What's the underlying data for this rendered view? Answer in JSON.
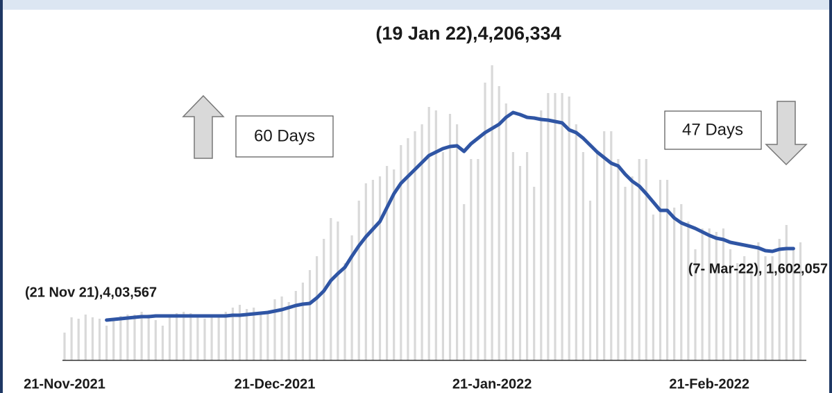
{
  "chart_data": {
    "type": "bar-line",
    "annotations": [
      "(19 Jan 22),4,206,334",
      "(21 Nov 21),4,03,567",
      "(7- Mar-22), 1,602,057",
      "60 Days",
      "47 Days"
    ],
    "categories": [
      "21-Nov-2021",
      null,
      null,
      null,
      null,
      null,
      null,
      null,
      null,
      null,
      null,
      null,
      null,
      null,
      null,
      null,
      null,
      null,
      null,
      null,
      null,
      null,
      null,
      null,
      null,
      null,
      null,
      null,
      null,
      null,
      "21-Dec-2021",
      null,
      null,
      null,
      null,
      null,
      null,
      null,
      null,
      null,
      null,
      null,
      null,
      null,
      null,
      null,
      null,
      null,
      null,
      null,
      null,
      null,
      null,
      null,
      null,
      null,
      null,
      null,
      null,
      null,
      null,
      "21-Jan-2022",
      null,
      null,
      null,
      null,
      null,
      null,
      null,
      null,
      null,
      null,
      null,
      null,
      null,
      null,
      null,
      null,
      null,
      null,
      null,
      null,
      null,
      null,
      null,
      null,
      null,
      null,
      null,
      null,
      null,
      null,
      "21-Feb-2022",
      null,
      null,
      null,
      null,
      null,
      null,
      null,
      null,
      null,
      null,
      null,
      null,
      null
    ],
    "series": [
      {
        "color": "#d9d9d9",
        "values": [
          400000,
          620000,
          600000,
          660000,
          620000,
          600000,
          500000,
          600000,
          640000,
          660000,
          660000,
          700000,
          660000,
          580000,
          500000,
          650000,
          680000,
          700000,
          680000,
          660000,
          600000,
          640000,
          660000,
          700000,
          760000,
          800000,
          740000,
          760000,
          660000,
          700000,
          880000,
          920000,
          840000,
          1000000,
          1120000,
          1300000,
          1500000,
          1750000,
          2050000,
          2000000,
          1400000,
          1800000,
          2300000,
          2550000,
          2600000,
          2650000,
          2800000,
          2750000,
          3100000,
          3200000,
          3300000,
          3400000,
          3650000,
          3600000,
          3000000,
          3550000,
          3400000,
          2250000,
          2900000,
          2900000,
          4000000,
          4250000,
          3950000,
          3700000,
          3000000,
          2800000,
          3000000,
          2500000,
          3600000,
          3850000,
          3850000,
          3850000,
          3800000,
          3400000,
          3000000,
          2300000,
          3000000,
          3300000,
          3300000,
          2900000,
          2500000,
          2650000,
          2900000,
          2900000,
          2100000,
          2600000,
          2600000,
          2200000,
          2250000,
          2000000,
          1600000,
          1900000,
          1900000,
          1850000,
          1900000,
          1600000,
          1400000,
          1500000,
          1400000,
          1700000,
          1500000,
          1500000,
          1750000,
          1950000,
          1600000,
          1700000
        ]
      },
      {
        "color": "#2f55a4",
        "values": [
          null,
          null,
          null,
          null,
          null,
          null,
          580000,
          590000,
          600000,
          610000,
          620000,
          630000,
          630000,
          640000,
          640000,
          640000,
          640000,
          640000,
          640000,
          640000,
          640000,
          640000,
          640000,
          640000,
          650000,
          650000,
          660000,
          670000,
          680000,
          690000,
          710000,
          730000,
          760000,
          790000,
          810000,
          820000,
          900000,
          1000000,
          1150000,
          1250000,
          1340000,
          1500000,
          1650000,
          1780000,
          1890000,
          2000000,
          2200000,
          2400000,
          2550000,
          2650000,
          2750000,
          2850000,
          2950000,
          3000000,
          3050000,
          3080000,
          3090000,
          3010000,
          3120000,
          3200000,
          3280000,
          3340000,
          3400000,
          3500000,
          3570000,
          3540000,
          3500000,
          3490000,
          3470000,
          3460000,
          3440000,
          3420000,
          3320000,
          3280000,
          3200000,
          3100000,
          3000000,
          2920000,
          2840000,
          2800000,
          2680000,
          2580000,
          2510000,
          2400000,
          2280000,
          2160000,
          2160000,
          2050000,
          1980000,
          1940000,
          1900000,
          1850000,
          1800000,
          1760000,
          1740000,
          1700000,
          1680000,
          1660000,
          1640000,
          1620000,
          1580000,
          1570000,
          1600000,
          1610000,
          1610000,
          null
        ]
      }
    ],
    "ylim": [
      0,
      4400000
    ]
  }
}
